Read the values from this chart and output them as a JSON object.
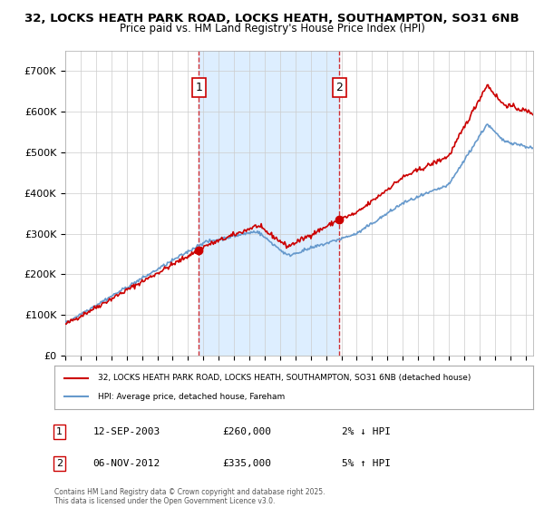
{
  "title_line1": "32, LOCKS HEATH PARK ROAD, LOCKS HEATH, SOUTHAMPTON, SO31 6NB",
  "title_line2": "Price paid vs. HM Land Registry's House Price Index (HPI)",
  "ylabel": "",
  "background_color": "#ffffff",
  "plot_bg_color": "#ffffff",
  "grid_color": "#cccccc",
  "hpi_line_color": "#6699cc",
  "price_line_color": "#cc0000",
  "sale1_date": "2003-09-12",
  "sale1_price": 260000,
  "sale1_label": "1",
  "sale2_date": "2012-11-06",
  "sale2_price": 335000,
  "sale2_label": "2",
  "shade_color": "#ddeeff",
  "legend_line1": "32, LOCKS HEATH PARK ROAD, LOCKS HEATH, SOUTHAMPTON, SO31 6NB (detached house)",
  "legend_line2": "HPI: Average price, detached house, Fareham",
  "footnote": "Contains HM Land Registry data © Crown copyright and database right 2025.\nThis data is licensed under the Open Government Licence v3.0.",
  "table_row1": "1    12-SEP-2003    £260,000    2% ↓ HPI",
  "table_row2": "2    06-NOV-2012    £335,000    5% ↑ HPI",
  "ylim_min": 0,
  "ylim_max": 750000,
  "yticks": [
    0,
    100000,
    200000,
    300000,
    400000,
    500000,
    600000,
    700000
  ],
  "ytick_labels": [
    "£0",
    "£100K",
    "£200K",
    "£300K",
    "£400K",
    "£500K",
    "£600K",
    "£700K"
  ],
  "x_start_year": 1995,
  "x_end_year": 2025
}
